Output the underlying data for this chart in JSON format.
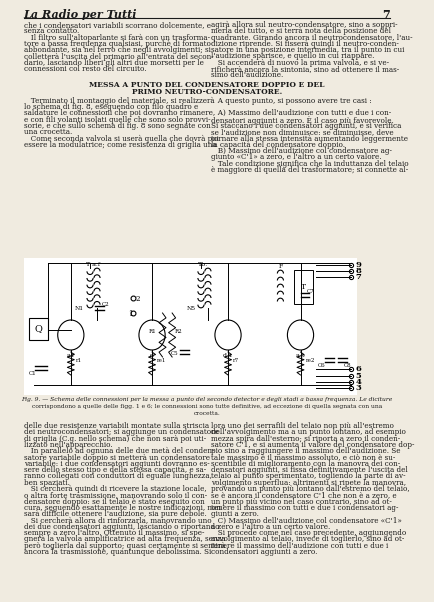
{
  "page_number": "7",
  "header_title": "La Radio per Tutti",
  "bg_color": "#f0ebe0",
  "text_color": "#1a1a1a",
  "section_heading_1": "MESSA A PUNTO DEL CONDENSATORE DOPPIO E DEL",
  "section_heading_2": "PRIMO NEUTRO-CONDENSATORE.",
  "fig_caption": "Fig. 9. — Schema delle connessioni per la messa a punto del secondo detector e degli stadi a bassa frequenza. Le diciture\ncorrispondono a quelle delle figg. 1 e 6; le connessioni sono tutte definitive, ad eccezione di quella segnata con una\ncrocetta.",
  "col1_text_top": "che i condensatori variabili scorrano dolcemente, e\nsenza contatto.\n   Il filtro sull'altoparlante si farà con un trasforma-\ntore a bassa frequenza qualsiasi, purchè di formato\nabbondante, sia nel ferro che negli avvolgimenti; si\ncolletterà l'uscita del primario all'entrata del secon-\ndario, lasciando liberi gli altri due morsetti per le\nconnessioni col resto del circuito.",
  "col1_text_mid": "   Terminato il montaggio del materiale, si realizzerà\nlo schema di fig. 8, eseguendo con filo quadro e\nsaldature le connessioni che poi dovranno rimanere,\ne con fili volanti isolati quelle che sono solo provvi-\nsorie, e che sullo schema di fig. 8 sono segnate con\nuna crocetta.\n   Come seconda valvola si userà quella che dovrà poi\nessere la modulatrice; come resistenza di griglia una",
  "col2_text_top": "agirà allora sul neutro-condensatore, sino a soppri-\nmerla del tutto, e si terrà nota della posizione del\nquadrante. Girando ancora il neutrocondensatore, l'au-\ndizione riprende. Si fisserà quindi il neutro-conden-\nsatore in una posizione intermedia, tra il punto in cui\nl'audizione sparisce, e quello in cui riappare.\n   Si accenderà di nuovo la prima valvola, e si ve-\nrificherà ancora la sintonia, sino ad ottenere il mas-\nsimo dell'audizione.",
  "col2_text_mid": "   A questo punto, si possono avere tre casi :\n\n   A) Massimo dell'audizione con tutti e due i con-\ndensatori aggiunti a zero. È il caso più favorevole.\nSi staccano i due condensatori aggiunti, e si verifica\nse l'audizione non diminuisce: se diminuisse, deve\ntornare alla stessa intensità aumentando leggermente\nla capacità del condensatore doppio.\n   B) Massimo dell'audizione col condensatore ag-\ngiunto «C'1» a zero, e l'altro a un certo valore.\n   Tale condizione significa che la induttanza del telaio\nè maggiore di quella del trasformatore; si connette al-",
  "col1_text_bot": "delle due resistenze variabili montate sulla striscia\ndei neutrocondensatori; si aggiunge un condensatore\ndi griglia (C.g. nello schema) che non sarà poi uti-\nlizzato nell'apparecchio.\n   In parallelo ad ognuna delle due metà del conden-\nsatore variabile doppio si metterà un condensatore\nvariabile: i due condensatori aggiunti dovranno es-\nsere dello stesso tipo e della stessa capacità, e sa-\nranno collegati con conduttori di eguale lunghezza,\nben spaziati.\n   Si cercherà quindi di ricevere la stazione locale,\no altra forte trasmissione, manovrando solo il con-\ndensatore doppio: se il telaio è stato eseguito con\ncura, seguendo esattamente le nostre indicazioni, non\nsarà difficile ottenere l'audizione, sia pure debole.\n   Si cercherà allora di rinforzarla, manovrando uno\ndei due condensatori aggiunti, lasciando o riportando\nsempre a zero l'altro. Ottenuto il massimo, si spe-\ngnerà la valvola amplificatrice ad alta frequenza, senza\nperò toglierla dal supporto; quasi certamente si sentirà\nancora la trasmissione, quantunque debolissima. Si",
  "col2_text_bot": "lora uno dei serrafili del telaio non più all'estremo\ndell'avvolgimento ma a un punto lontano, ad esempio\nmezza spira dall'esterno; si riporta a zero il conden-\nsatore C'1, e si aumenta il valore del condensatore dop-\npio sino a raggiungere il massimo dell'audizione. Se\ntale massimo è il massimo assoluto, e ciò non è su-\nscentibile di miglioramento con la manovra dei con-\ndensatori aggiunti, si fissa definitivamente l'uscita del\ntelaio al punto sperimentato, togliendo la parte di av-\nvolgimento superflua: altrimenti si ripete la manovra,\nprovando un punto più lontano dall'estremo del telaio,\nse è ancora il condensatore C'1 che non è a zero, e\nun punto più vicino nel caso contrario, sino ad ot-\ntenere il massimo con tutti e due i condensatori ag-\ngiunti a zero.\n   C) Massimo dell'audizione col condensatore «C'1»\na zero e l'altro a un certo valore.\n   Si procede come nel caso precedente, aggiungendo\navvolgimento al telaio, invece di toglierlo, sino ad ot-\ntenere il massimo dell'audizione con tutti e due i\ncondensatori aggiunti a zero."
}
